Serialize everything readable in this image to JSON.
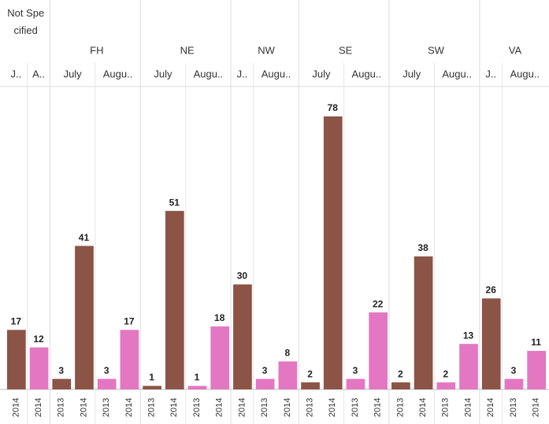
{
  "chart_data": {
    "type": "bar",
    "groups": [
      {
        "name": "Not Specified",
        "months": [
          {
            "label": "J..",
            "color": "#8b5446",
            "years": [
              "2014"
            ],
            "values": [
              17
            ]
          },
          {
            "label": "A..",
            "color": "#e377c2",
            "years": [
              "2014"
            ],
            "values": [
              12
            ]
          }
        ]
      },
      {
        "name": "FH",
        "months": [
          {
            "label": "July",
            "color": "#8b5446",
            "years": [
              "2013",
              "2014"
            ],
            "values": [
              3,
              41
            ]
          },
          {
            "label": "Augu..",
            "color": "#e377c2",
            "years": [
              "2013",
              "2014"
            ],
            "values": [
              3,
              17
            ]
          }
        ]
      },
      {
        "name": "NE",
        "months": [
          {
            "label": "July",
            "color": "#8b5446",
            "years": [
              "2013",
              "2014"
            ],
            "values": [
              1,
              51
            ]
          },
          {
            "label": "Augu..",
            "color": "#e377c2",
            "years": [
              "2013",
              "2014"
            ],
            "values": [
              1,
              18
            ]
          }
        ]
      },
      {
        "name": "NW",
        "months": [
          {
            "label": "J..",
            "color": "#8b5446",
            "years": [
              "2014"
            ],
            "values": [
              30
            ]
          },
          {
            "label": "Augu..",
            "color": "#e377c2",
            "years": [
              "2013",
              "2014"
            ],
            "values": [
              3,
              8
            ]
          }
        ]
      },
      {
        "name": "SE",
        "months": [
          {
            "label": "July",
            "color": "#8b5446",
            "years": [
              "2013",
              "2014"
            ],
            "values": [
              2,
              78
            ]
          },
          {
            "label": "Augu..",
            "color": "#e377c2",
            "years": [
              "2013",
              "2014"
            ],
            "values": [
              3,
              22
            ]
          }
        ]
      },
      {
        "name": "SW",
        "months": [
          {
            "label": "July",
            "color": "#8b5446",
            "years": [
              "2013",
              "2014"
            ],
            "values": [
              2,
              38
            ]
          },
          {
            "label": "Augu..",
            "color": "#e377c2",
            "years": [
              "2013",
              "2014"
            ],
            "values": [
              2,
              13
            ]
          }
        ]
      },
      {
        "name": "VA",
        "months": [
          {
            "label": "J..",
            "color": "#8b5446",
            "years": [
              "2014"
            ],
            "values": [
              26
            ]
          },
          {
            "label": "Augu..",
            "color": "#e377c2",
            "years": [
              "2013",
              "2014"
            ],
            "values": [
              3,
              11
            ]
          }
        ]
      }
    ]
  }
}
